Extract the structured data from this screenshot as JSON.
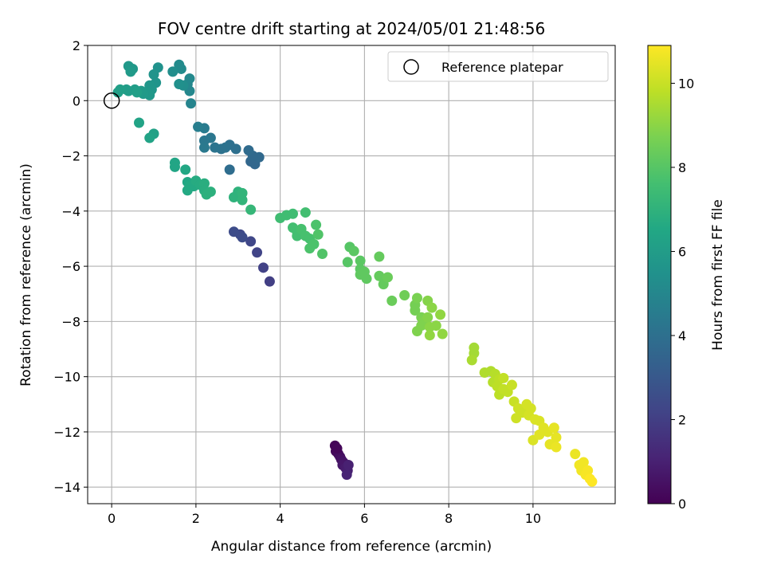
{
  "chart_data": {
    "type": "scatter",
    "title": "FOV centre drift starting at 2024/05/01 21:48:56",
    "xlabel": "Angular distance from reference (arcmin)",
    "ylabel": "Rotation from reference (arcmin)",
    "xlim": [
      -0.57,
      11.95
    ],
    "ylim": [
      -14.6,
      2.0
    ],
    "xticks": [
      "0",
      "2",
      "4",
      "6",
      "8",
      "10"
    ],
    "xtick_values": [
      0,
      2,
      4,
      6,
      8,
      10
    ],
    "yticks": [
      "2",
      "0",
      "−2",
      "−4",
      "−6",
      "−8",
      "−10",
      "−12",
      "−14"
    ],
    "ytick_values": [
      2,
      0,
      -2,
      -4,
      -6,
      -8,
      -10,
      -12,
      -14
    ],
    "grid": true,
    "legend": {
      "placement": "top-right",
      "entries": [
        "Reference platepar"
      ]
    },
    "reference_point": {
      "x": 0,
      "y": 0,
      "label": "Reference platepar"
    },
    "colorbar": {
      "label": "Hours from first FF file",
      "colormap": "viridis",
      "range": [
        0,
        10.9
      ],
      "ticks": [
        "0",
        "2",
        "4",
        "6",
        "8",
        "10"
      ],
      "tick_values": [
        0,
        2,
        4,
        6,
        8,
        10
      ]
    },
    "series": [
      {
        "points": [
          {
            "x": 5.3,
            "y": -12.5,
            "h": 0.1
          },
          {
            "x": 5.32,
            "y": -12.7,
            "h": 0.2
          },
          {
            "x": 5.38,
            "y": -12.8,
            "h": 0.3
          },
          {
            "x": 5.42,
            "y": -12.9,
            "h": 0.4
          },
          {
            "x": 5.45,
            "y": -13.0,
            "h": 0.5
          },
          {
            "x": 5.5,
            "y": -13.1,
            "h": 0.6
          },
          {
            "x": 5.48,
            "y": -13.2,
            "h": 0.7
          },
          {
            "x": 5.55,
            "y": -13.3,
            "h": 0.8
          },
          {
            "x": 5.6,
            "y": -13.4,
            "h": 0.9
          },
          {
            "x": 5.62,
            "y": -13.2,
            "h": 1.0
          },
          {
            "x": 5.58,
            "y": -13.55,
            "h": 1.1
          },
          {
            "x": 5.35,
            "y": -12.6,
            "h": 0.15
          },
          {
            "x": 3.75,
            "y": -6.55,
            "h": 2.0
          },
          {
            "x": 3.6,
            "y": -6.05,
            "h": 2.1
          },
          {
            "x": 3.45,
            "y": -5.5,
            "h": 2.2
          },
          {
            "x": 3.3,
            "y": -5.1,
            "h": 2.3
          },
          {
            "x": 3.05,
            "y": -4.85,
            "h": 2.4
          },
          {
            "x": 2.9,
            "y": -4.75,
            "h": 2.5
          },
          {
            "x": 3.1,
            "y": -4.95,
            "h": 2.5
          },
          {
            "x": 3.3,
            "y": -2.2,
            "h": 3.6
          },
          {
            "x": 3.4,
            "y": -2.3,
            "h": 3.6
          },
          {
            "x": 3.5,
            "y": -2.05,
            "h": 3.7
          },
          {
            "x": 3.35,
            "y": -2.0,
            "h": 3.7
          },
          {
            "x": 3.25,
            "y": -1.8,
            "h": 3.8
          },
          {
            "x": 2.8,
            "y": -2.5,
            "h": 3.9
          },
          {
            "x": 2.95,
            "y": -1.75,
            "h": 4.0
          },
          {
            "x": 2.8,
            "y": -1.6,
            "h": 4.0
          },
          {
            "x": 2.7,
            "y": -1.7,
            "h": 4.1
          },
          {
            "x": 2.6,
            "y": -1.75,
            "h": 4.1
          },
          {
            "x": 2.45,
            "y": -1.7,
            "h": 4.2
          },
          {
            "x": 2.35,
            "y": -1.35,
            "h": 4.3
          },
          {
            "x": 2.2,
            "y": -1.45,
            "h": 4.3
          },
          {
            "x": 2.2,
            "y": -1.7,
            "h": 4.4
          },
          {
            "x": 2.2,
            "y": -1.0,
            "h": 4.5
          },
          {
            "x": 2.05,
            "y": -0.95,
            "h": 4.6
          },
          {
            "x": 1.88,
            "y": -0.1,
            "h": 4.9
          },
          {
            "x": 1.85,
            "y": 0.35,
            "h": 5.0
          },
          {
            "x": 1.8,
            "y": 0.6,
            "h": 5.0
          },
          {
            "x": 1.85,
            "y": 0.8,
            "h": 5.1
          },
          {
            "x": 1.65,
            "y": 1.15,
            "h": 5.2
          },
          {
            "x": 1.6,
            "y": 1.3,
            "h": 5.2
          },
          {
            "x": 1.45,
            "y": 1.05,
            "h": 5.3
          },
          {
            "x": 1.7,
            "y": 0.55,
            "h": 5.3
          },
          {
            "x": 1.6,
            "y": 0.6,
            "h": 5.4
          },
          {
            "x": 1.1,
            "y": 1.2,
            "h": 5.5
          },
          {
            "x": 1.0,
            "y": 0.95,
            "h": 5.6
          },
          {
            "x": 1.05,
            "y": 0.65,
            "h": 5.6
          },
          {
            "x": 0.9,
            "y": 0.55,
            "h": 5.7
          },
          {
            "x": 0.95,
            "y": 0.4,
            "h": 5.7
          },
          {
            "x": 0.85,
            "y": 0.3,
            "h": 5.8
          },
          {
            "x": 0.9,
            "y": 0.2,
            "h": 5.8
          },
          {
            "x": 0.75,
            "y": 0.25,
            "h": 5.9
          },
          {
            "x": 0.7,
            "y": 0.35,
            "h": 5.9
          },
          {
            "x": 0.55,
            "y": 0.4,
            "h": 6.0
          },
          {
            "x": 0.4,
            "y": 0.35,
            "h": 6.0
          },
          {
            "x": 0.35,
            "y": 0.4,
            "h": 6.0
          },
          {
            "x": 0.2,
            "y": 0.4,
            "h": 6.1
          },
          {
            "x": 0.15,
            "y": 0.3,
            "h": 6.1
          },
          {
            "x": 0.5,
            "y": 1.15,
            "h": 5.8
          },
          {
            "x": 0.4,
            "y": 1.25,
            "h": 5.8
          },
          {
            "x": 0.45,
            "y": 1.05,
            "h": 5.9
          },
          {
            "x": 0.6,
            "y": 0.3,
            "h": 6.1
          },
          {
            "x": 0.65,
            "y": -0.8,
            "h": 6.3
          },
          {
            "x": 1.0,
            "y": -1.2,
            "h": 6.2
          },
          {
            "x": 0.9,
            "y": -1.35,
            "h": 6.3
          },
          {
            "x": 1.5,
            "y": -2.25,
            "h": 6.4
          },
          {
            "x": 1.5,
            "y": -2.4,
            "h": 6.4
          },
          {
            "x": 1.75,
            "y": -2.5,
            "h": 6.5
          },
          {
            "x": 1.8,
            "y": -2.95,
            "h": 6.5
          },
          {
            "x": 1.85,
            "y": -3.1,
            "h": 6.6
          },
          {
            "x": 1.8,
            "y": -3.25,
            "h": 6.6
          },
          {
            "x": 1.95,
            "y": -3.1,
            "h": 6.6
          },
          {
            "x": 2.0,
            "y": -2.9,
            "h": 6.7
          },
          {
            "x": 2.1,
            "y": -3.05,
            "h": 6.7
          },
          {
            "x": 2.2,
            "y": -3.0,
            "h": 6.8
          },
          {
            "x": 2.2,
            "y": -3.25,
            "h": 6.8
          },
          {
            "x": 2.25,
            "y": -3.4,
            "h": 6.9
          },
          {
            "x": 2.35,
            "y": -3.3,
            "h": 6.9
          },
          {
            "x": 2.9,
            "y": -3.5,
            "h": 7.0
          },
          {
            "x": 3.0,
            "y": -3.3,
            "h": 7.0
          },
          {
            "x": 3.1,
            "y": -3.35,
            "h": 7.1
          },
          {
            "x": 3.1,
            "y": -3.6,
            "h": 7.1
          },
          {
            "x": 3.3,
            "y": -3.95,
            "h": 7.2
          },
          {
            "x": 4.0,
            "y": -4.25,
            "h": 7.5
          },
          {
            "x": 4.15,
            "y": -4.15,
            "h": 7.5
          },
          {
            "x": 4.3,
            "y": -4.1,
            "h": 7.5
          },
          {
            "x": 4.3,
            "y": -4.6,
            "h": 7.6
          },
          {
            "x": 4.4,
            "y": -4.75,
            "h": 7.6
          },
          {
            "x": 4.4,
            "y": -4.9,
            "h": 7.6
          },
          {
            "x": 4.5,
            "y": -4.65,
            "h": 7.7
          },
          {
            "x": 4.6,
            "y": -4.05,
            "h": 7.6
          },
          {
            "x": 4.6,
            "y": -4.9,
            "h": 7.7
          },
          {
            "x": 4.7,
            "y": -5.0,
            "h": 7.7
          },
          {
            "x": 4.7,
            "y": -5.35,
            "h": 7.8
          },
          {
            "x": 4.8,
            "y": -5.2,
            "h": 7.8
          },
          {
            "x": 4.85,
            "y": -4.5,
            "h": 7.8
          },
          {
            "x": 4.9,
            "y": -4.85,
            "h": 7.9
          },
          {
            "x": 5.0,
            "y": -5.55,
            "h": 7.9
          },
          {
            "x": 5.6,
            "y": -5.85,
            "h": 8.0
          },
          {
            "x": 5.65,
            "y": -5.3,
            "h": 8.0
          },
          {
            "x": 5.75,
            "y": -5.45,
            "h": 8.1
          },
          {
            "x": 5.9,
            "y": -5.8,
            "h": 8.1
          },
          {
            "x": 5.9,
            "y": -6.1,
            "h": 8.1
          },
          {
            "x": 5.9,
            "y": -6.3,
            "h": 8.2
          },
          {
            "x": 6.0,
            "y": -6.2,
            "h": 8.2
          },
          {
            "x": 6.05,
            "y": -6.45,
            "h": 8.2
          },
          {
            "x": 6.35,
            "y": -5.65,
            "h": 8.3
          },
          {
            "x": 6.35,
            "y": -6.35,
            "h": 8.3
          },
          {
            "x": 6.45,
            "y": -6.65,
            "h": 8.3
          },
          {
            "x": 6.55,
            "y": -6.4,
            "h": 8.4
          },
          {
            "x": 6.65,
            "y": -7.25,
            "h": 8.4
          },
          {
            "x": 6.95,
            "y": -7.05,
            "h": 8.5
          },
          {
            "x": 7.2,
            "y": -7.4,
            "h": 8.6
          },
          {
            "x": 7.2,
            "y": -7.6,
            "h": 8.6
          },
          {
            "x": 7.25,
            "y": -7.15,
            "h": 8.7
          },
          {
            "x": 7.35,
            "y": -7.85,
            "h": 8.7
          },
          {
            "x": 7.4,
            "y": -8.0,
            "h": 8.8
          },
          {
            "x": 7.25,
            "y": -8.35,
            "h": 8.8
          },
          {
            "x": 7.35,
            "y": -8.15,
            "h": 8.8
          },
          {
            "x": 7.5,
            "y": -7.25,
            "h": 8.9
          },
          {
            "x": 7.5,
            "y": -7.85,
            "h": 8.9
          },
          {
            "x": 7.55,
            "y": -8.2,
            "h": 9.0
          },
          {
            "x": 7.6,
            "y": -7.5,
            "h": 9.0
          },
          {
            "x": 7.7,
            "y": -8.15,
            "h": 9.0
          },
          {
            "x": 7.55,
            "y": -8.5,
            "h": 9.1
          },
          {
            "x": 7.8,
            "y": -7.75,
            "h": 9.1
          },
          {
            "x": 7.85,
            "y": -8.45,
            "h": 9.1
          },
          {
            "x": 8.6,
            "y": -8.95,
            "h": 9.4
          },
          {
            "x": 8.6,
            "y": -9.15,
            "h": 9.4
          },
          {
            "x": 8.55,
            "y": -9.4,
            "h": 9.5
          },
          {
            "x": 8.85,
            "y": -9.85,
            "h": 9.6
          },
          {
            "x": 9.0,
            "y": -9.8,
            "h": 9.6
          },
          {
            "x": 9.05,
            "y": -10.2,
            "h": 9.7
          },
          {
            "x": 9.1,
            "y": -9.9,
            "h": 9.7
          },
          {
            "x": 9.15,
            "y": -10.35,
            "h": 9.8
          },
          {
            "x": 9.2,
            "y": -10.1,
            "h": 9.8
          },
          {
            "x": 9.2,
            "y": -10.65,
            "h": 9.8
          },
          {
            "x": 9.3,
            "y": -10.05,
            "h": 9.9
          },
          {
            "x": 9.3,
            "y": -10.45,
            "h": 9.9
          },
          {
            "x": 9.4,
            "y": -10.55,
            "h": 9.9
          },
          {
            "x": 9.5,
            "y": -10.3,
            "h": 10.0
          },
          {
            "x": 9.55,
            "y": -10.9,
            "h": 10.0
          },
          {
            "x": 9.65,
            "y": -11.15,
            "h": 10.1
          },
          {
            "x": 9.6,
            "y": -11.5,
            "h": 10.1
          },
          {
            "x": 9.75,
            "y": -11.3,
            "h": 10.1
          },
          {
            "x": 9.85,
            "y": -11.0,
            "h": 10.2
          },
          {
            "x": 9.9,
            "y": -11.4,
            "h": 10.2
          },
          {
            "x": 9.95,
            "y": -11.15,
            "h": 10.2
          },
          {
            "x": 10.05,
            "y": -11.55,
            "h": 10.3
          },
          {
            "x": 10.0,
            "y": -12.3,
            "h": 10.3
          },
          {
            "x": 10.15,
            "y": -11.6,
            "h": 10.3
          },
          {
            "x": 10.15,
            "y": -12.1,
            "h": 10.4
          },
          {
            "x": 10.25,
            "y": -11.85,
            "h": 10.4
          },
          {
            "x": 10.35,
            "y": -12.0,
            "h": 10.4
          },
          {
            "x": 10.4,
            "y": -12.45,
            "h": 10.5
          },
          {
            "x": 10.5,
            "y": -11.85,
            "h": 10.5
          },
          {
            "x": 10.55,
            "y": -12.2,
            "h": 10.5
          },
          {
            "x": 10.55,
            "y": -12.55,
            "h": 10.6
          },
          {
            "x": 11.0,
            "y": -12.8,
            "h": 10.6
          },
          {
            "x": 11.1,
            "y": -13.2,
            "h": 10.7
          },
          {
            "x": 11.2,
            "y": -13.1,
            "h": 10.7
          },
          {
            "x": 11.15,
            "y": -13.4,
            "h": 10.7
          },
          {
            "x": 11.25,
            "y": -13.55,
            "h": 10.8
          },
          {
            "x": 11.3,
            "y": -13.4,
            "h": 10.8
          },
          {
            "x": 11.35,
            "y": -13.7,
            "h": 10.9
          },
          {
            "x": 11.4,
            "y": -13.8,
            "h": 10.9
          }
        ]
      }
    ]
  }
}
